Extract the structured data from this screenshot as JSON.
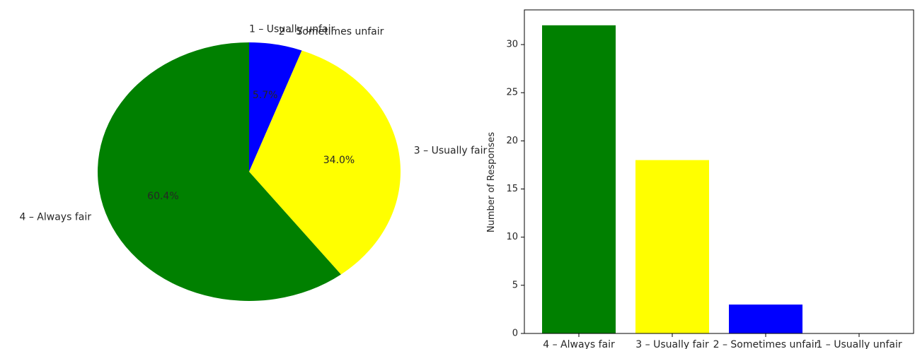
{
  "chart_data": [
    {
      "type": "pie",
      "labels": [
        "1 – Usually unfair",
        "2 – Sometimes unfair",
        "3 – Usually fair",
        "4 – Always fair"
      ],
      "values": [
        0,
        3,
        18,
        32
      ],
      "percent_labels": [
        "0.0%",
        "5.7%",
        "34.0%",
        "60.4%"
      ],
      "colors": [
        "#ff0000",
        "#0000ff",
        "#ffff00",
        "#008000"
      ],
      "start_angle_deg": 90,
      "direction": "clockwise"
    },
    {
      "type": "bar",
      "categories": [
        "4 – Always fair",
        "3 – Usually fair",
        "2 – Sometimes unfair",
        "1 – Usually unfair"
      ],
      "values": [
        32,
        18,
        3,
        0
      ],
      "colors": [
        "#008000",
        "#ffff00",
        "#0000ff",
        "#ff0000"
      ],
      "ylabel": "Number of Responses",
      "ylim": [
        0,
        33.6
      ],
      "yticks": [
        0,
        5,
        10,
        15,
        20,
        25,
        30
      ],
      "grid": false
    }
  ]
}
